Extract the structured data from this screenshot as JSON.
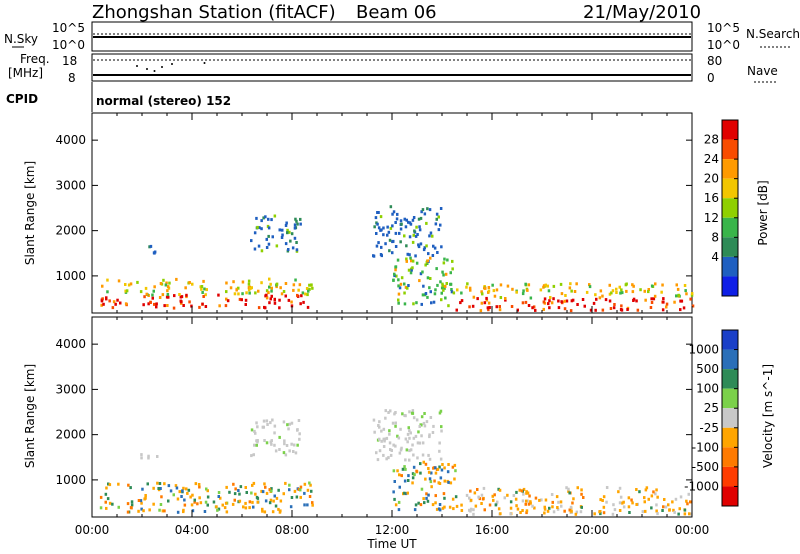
{
  "header": {
    "station": "Zhongshan Station (fitACF)",
    "beam": "Beam 06",
    "date": "21/May/2010"
  },
  "panels": {
    "nsky_label": "N.Sky",
    "nsearch_label": "N.Search",
    "nsky_ticks": [
      "10^5",
      "10^0"
    ],
    "nsearch_ticks": [
      "10^5",
      "10^0"
    ],
    "freq_label_1": "Freq.",
    "freq_label_2": "[MHz]",
    "freq_ticks": [
      "18",
      "8"
    ],
    "nave_label": "Nave",
    "nave_ticks": [
      "80",
      "0"
    ],
    "cpid_label": "CPID",
    "cpid_text": "normal (stereo) 152"
  },
  "chart_data": [
    {
      "type": "heatmap",
      "ylabel": "Slant Range [km]",
      "yticks": [
        1000,
        2000,
        3000,
        4000
      ],
      "ylim": [
        180,
        4600
      ],
      "xlabel": "Time UT",
      "xticks": [
        "00:00",
        "04:00",
        "08:00",
        "12:00",
        "16:00",
        "20:00",
        "00:00"
      ],
      "xlim_hours": [
        0,
        24
      ],
      "colorbar": {
        "label": "Power [dB]",
        "ticks": [
          "28",
          "24",
          "20",
          "16",
          "12",
          "8",
          "4"
        ],
        "colors": [
          "#e00000",
          "#f84c00",
          "#ff9a00",
          "#f2c600",
          "#8fd000",
          "#39b54a",
          "#2e8b57",
          "#1f5fc0",
          "#0f1fe6"
        ]
      },
      "regions": [
        {
          "t_start": 0.3,
          "t_end": 8.8,
          "r_min": 250,
          "r_max": 900,
          "level": "high"
        },
        {
          "t_start": 1.8,
          "t_end": 2.6,
          "r_min": 1450,
          "r_max": 1650,
          "level": "low"
        },
        {
          "t_start": 6.3,
          "t_end": 8.3,
          "r_min": 1500,
          "r_max": 2300,
          "level": "low"
        },
        {
          "t_start": 11.2,
          "t_end": 14.0,
          "r_min": 1400,
          "r_max": 2500,
          "level": "low"
        },
        {
          "t_start": 12.0,
          "t_end": 14.5,
          "r_min": 300,
          "r_max": 1400,
          "level": "mid"
        },
        {
          "t_start": 14.5,
          "t_end": 24.0,
          "r_min": 200,
          "r_max": 800,
          "level": "high"
        }
      ]
    },
    {
      "type": "heatmap",
      "ylabel": "Slant Range [km]",
      "yticks": [
        1000,
        2000,
        3000,
        4000
      ],
      "ylim": [
        180,
        4600
      ],
      "xlabel": "Time UT",
      "xticks": [
        "00:00",
        "04:00",
        "08:00",
        "12:00",
        "16:00",
        "20:00",
        "00:00"
      ],
      "xlim_hours": [
        0,
        24
      ],
      "colorbar": {
        "label": "Velocity [m s^-1]",
        "ticks": [
          "1000",
          "500",
          "100",
          "25",
          "-25",
          "-100",
          "-500",
          "-1000"
        ],
        "colors": [
          "#1a3fc8",
          "#2a6fb8",
          "#2e8b57",
          "#7bd14a",
          "#c8c8c8",
          "#ffa500",
          "#ff7a00",
          "#ff3c00",
          "#e00000"
        ]
      },
      "regions": [
        {
          "t_start": 0.3,
          "t_end": 8.8,
          "r_min": 250,
          "r_max": 900,
          "level": "mixed"
        },
        {
          "t_start": 1.8,
          "t_end": 2.6,
          "r_min": 1450,
          "r_max": 1650,
          "level": "zero"
        },
        {
          "t_start": 6.3,
          "t_end": 8.3,
          "r_min": 1500,
          "r_max": 2300,
          "level": "zero"
        },
        {
          "t_start": 11.2,
          "t_end": 14.0,
          "r_min": 1400,
          "r_max": 2500,
          "level": "zero"
        },
        {
          "t_start": 12.0,
          "t_end": 14.5,
          "r_min": 300,
          "r_max": 1400,
          "level": "mixed"
        },
        {
          "t_start": 14.5,
          "t_end": 24.0,
          "r_min": 200,
          "r_max": 800,
          "level": "neg"
        }
      ]
    }
  ],
  "colors": {
    "axis": "#000000",
    "background": "#ffffff"
  }
}
